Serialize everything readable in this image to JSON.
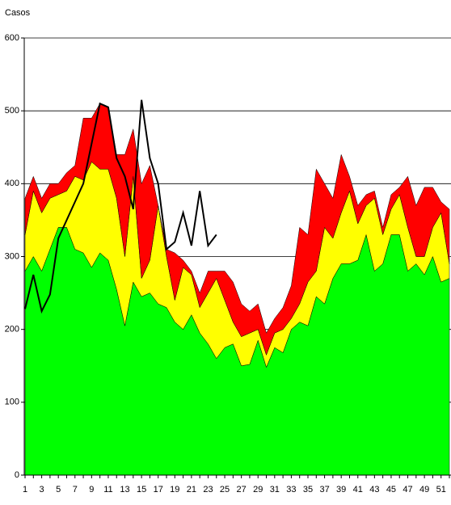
{
  "chart_data": {
    "type": "stacked-area-line",
    "y_label": "Casos",
    "x": [
      1,
      2,
      3,
      4,
      5,
      6,
      7,
      8,
      9,
      10,
      11,
      12,
      13,
      14,
      15,
      16,
      17,
      18,
      19,
      20,
      21,
      22,
      23,
      24,
      25,
      26,
      27,
      28,
      29,
      30,
      31,
      32,
      33,
      34,
      35,
      36,
      37,
      38,
      39,
      40,
      41,
      42,
      43,
      44,
      45,
      46,
      47,
      48,
      49,
      50,
      51,
      52
    ],
    "xlim": [
      1,
      52
    ],
    "xticks": [
      1,
      3,
      5,
      7,
      9,
      11,
      13,
      15,
      17,
      19,
      21,
      23,
      25,
      27,
      29,
      31,
      33,
      35,
      37,
      39,
      41,
      43,
      45,
      47,
      49,
      51
    ],
    "ylim": [
      0,
      600
    ],
    "yticks": [
      0,
      100,
      200,
      300,
      400,
      500,
      600
    ],
    "grid": true,
    "series": [
      {
        "color": "#00ff00",
        "values": [
          280,
          300,
          280,
          310,
          340,
          340,
          310,
          305,
          285,
          305,
          295,
          255,
          205,
          265,
          245,
          250,
          235,
          230,
          210,
          200,
          220,
          195,
          180,
          160,
          175,
          180,
          150,
          152,
          185,
          148,
          175,
          168,
          200,
          210,
          205,
          245,
          235,
          270,
          290,
          290,
          295,
          330,
          280,
          290,
          330,
          330,
          280,
          290,
          275,
          300,
          265,
          270
        ]
      },
      {
        "color": "#ffff00",
        "values": [
          50,
          90,
          80,
          70,
          45,
          50,
          100,
          100,
          145,
          115,
          125,
          125,
          95,
          145,
          25,
          45,
          135,
          70,
          30,
          85,
          55,
          35,
          70,
          110,
          65,
          30,
          40,
          43,
          15,
          17,
          20,
          32,
          15,
          25,
          60,
          35,
          105,
          55,
          70,
          100,
          50,
          40,
          100,
          40,
          35,
          55,
          60,
          10,
          25,
          40,
          95,
          20
        ]
      },
      {
        "color": "#ff0000",
        "values": [
          50,
          20,
          20,
          20,
          15,
          25,
          15,
          85,
          60,
          90,
          85,
          60,
          140,
          65,
          130,
          130,
          0,
          10,
          65,
          10,
          5,
          20,
          30,
          10,
          40,
          55,
          45,
          30,
          35,
          30,
          20,
          30,
          45,
          105,
          65,
          140,
          60,
          55,
          80,
          20,
          25,
          15,
          10,
          10,
          20,
          10,
          70,
          70,
          95,
          55,
          15,
          75
        ]
      }
    ],
    "line": {
      "color": "#000000",
      "values": [
        228,
        275,
        225,
        248,
        325,
        350,
        375,
        400,
        455,
        510,
        505,
        435,
        410,
        365,
        515,
        435,
        400,
        310,
        320,
        360,
        315,
        390,
        315,
        330,
        null,
        null,
        null,
        null,
        null,
        null,
        null,
        null,
        null,
        null,
        null,
        null,
        null,
        null,
        null,
        null,
        null,
        null,
        null,
        null,
        null,
        null,
        null,
        null,
        null,
        null,
        null,
        null
      ]
    }
  }
}
